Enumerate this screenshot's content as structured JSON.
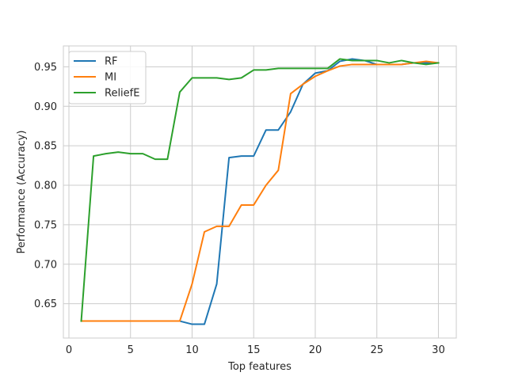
{
  "chart_data": {
    "type": "line",
    "title": "",
    "xlabel": "Top features",
    "ylabel": "Performance  (Accuracy)",
    "xlim": [
      -0.45,
      31.45
    ],
    "ylim": [
      0.6065,
      0.9765
    ],
    "xticks": [
      0,
      5,
      10,
      15,
      20,
      25,
      30
    ],
    "xtick_labels": [
      "0",
      "5",
      "10",
      "15",
      "20",
      "25",
      "30"
    ],
    "yticks": [
      0.65,
      0.7,
      0.75,
      0.8,
      0.85,
      0.9,
      0.95
    ],
    "ytick_labels": [
      "0.65",
      "0.70",
      "0.75",
      "0.80",
      "0.85",
      "0.90",
      "0.95"
    ],
    "grid": true,
    "legend_position": "top-left",
    "x": [
      1,
      2,
      3,
      4,
      5,
      6,
      7,
      8,
      9,
      10,
      11,
      12,
      13,
      14,
      15,
      16,
      17,
      18,
      19,
      20,
      21,
      22,
      23,
      24,
      25,
      26,
      27,
      28,
      29,
      30
    ],
    "series": [
      {
        "name": "RF",
        "color": "#1f77b4",
        "values": [
          0.628,
          0.628,
          0.628,
          0.628,
          0.628,
          0.628,
          0.628,
          0.628,
          0.628,
          0.624,
          0.624,
          0.675,
          0.835,
          0.837,
          0.837,
          0.87,
          0.87,
          0.893,
          0.928,
          0.942,
          0.945,
          0.957,
          0.96,
          0.958,
          0.953,
          0.953,
          0.953,
          0.955,
          0.955,
          0.955
        ]
      },
      {
        "name": "MI",
        "color": "#ff7f0e",
        "values": [
          0.628,
          0.628,
          0.628,
          0.628,
          0.628,
          0.628,
          0.628,
          0.628,
          0.628,
          0.675,
          0.741,
          0.748,
          0.748,
          0.775,
          0.775,
          0.8,
          0.819,
          0.916,
          0.928,
          0.938,
          0.945,
          0.951,
          0.953,
          0.953,
          0.953,
          0.953,
          0.953,
          0.955,
          0.957,
          0.955
        ]
      },
      {
        "name": "ReliefE",
        "color": "#2ca02c",
        "values": [
          0.628,
          0.837,
          0.84,
          0.842,
          0.84,
          0.84,
          0.833,
          0.833,
          0.918,
          0.936,
          0.936,
          0.936,
          0.934,
          0.936,
          0.946,
          0.946,
          0.948,
          0.948,
          0.948,
          0.948,
          0.948,
          0.96,
          0.958,
          0.958,
          0.958,
          0.955,
          0.958,
          0.955,
          0.953,
          0.955
        ]
      }
    ]
  }
}
